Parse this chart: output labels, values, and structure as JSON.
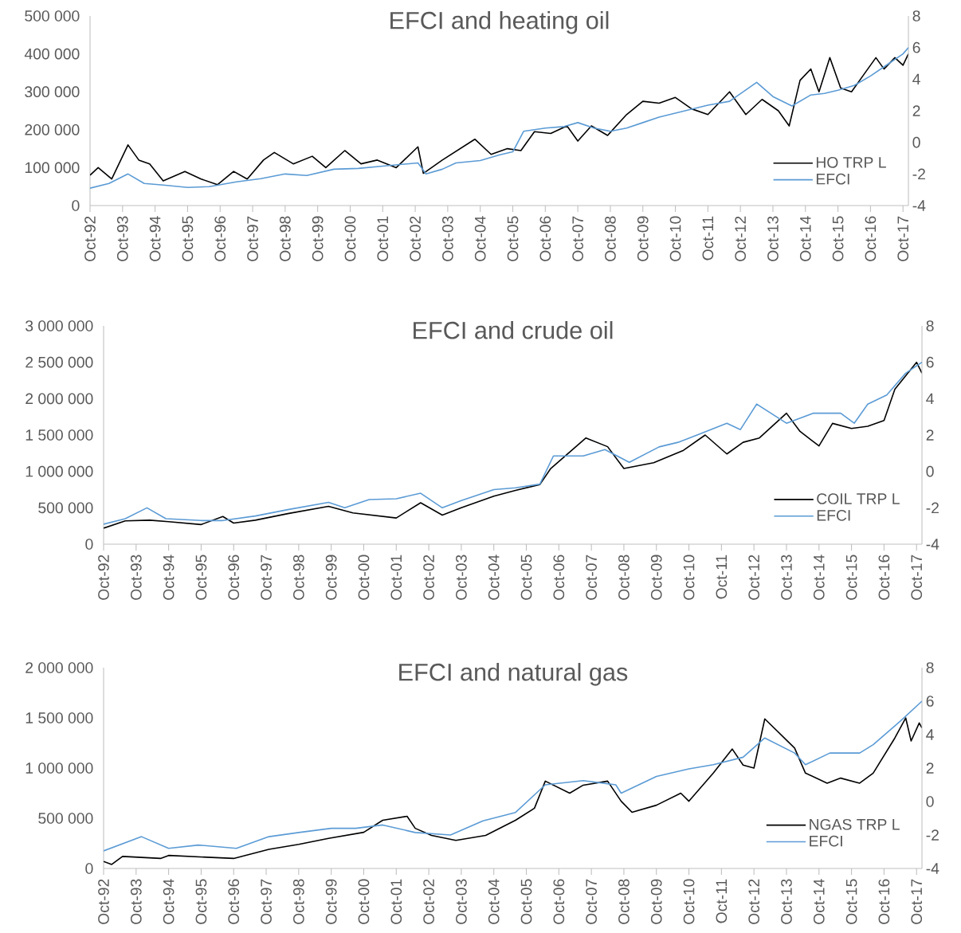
{
  "chart_data": [
    {
      "type": "line",
      "title": "EFCI and heating oil",
      "legend": "bottom right",
      "xlim": [
        "1992-10",
        "2017-12"
      ],
      "xticks": [
        {
          "value": "1992-10",
          "label": "Oct-92"
        },
        {
          "value": "1993-10",
          "label": "Oct-93"
        },
        {
          "value": "1994-10",
          "label": "Oct-94"
        },
        {
          "value": "1995-10",
          "label": "Oct-95"
        },
        {
          "value": "1996-10",
          "label": "Oct-96"
        },
        {
          "value": "1997-10",
          "label": "Oct-97"
        },
        {
          "value": "1998-10",
          "label": "Oct-98"
        },
        {
          "value": "1999-10",
          "label": "Oct-99"
        },
        {
          "value": "2000-10",
          "label": "Oct-00"
        },
        {
          "value": "2001-10",
          "label": "Oct-01"
        },
        {
          "value": "2002-10",
          "label": "Oct-02"
        },
        {
          "value": "2003-10",
          "label": "Oct-03"
        },
        {
          "value": "2004-10",
          "label": "Oct-04"
        },
        {
          "value": "2005-10",
          "label": "Oct-05"
        },
        {
          "value": "2006-10",
          "label": "Oct-06"
        },
        {
          "value": "2007-10",
          "label": "Oct-07"
        },
        {
          "value": "2008-10",
          "label": "Oct-08"
        },
        {
          "value": "2009-10",
          "label": "Oct-09"
        },
        {
          "value": "2010-10",
          "label": "Oct-10"
        },
        {
          "value": "2011-10",
          "label": "Oct-11"
        },
        {
          "value": "2012-10",
          "label": "Oct-12"
        },
        {
          "value": "2013-10",
          "label": "Oct-13"
        },
        {
          "value": "2014-10",
          "label": "Oct-14"
        },
        {
          "value": "2015-10",
          "label": "Oct-15"
        },
        {
          "value": "2016-10",
          "label": "Oct-16"
        },
        {
          "value": "2017-10",
          "label": "Oct-17"
        }
      ],
      "ylim": [
        0,
        500000
      ],
      "yticks": [
        0,
        {
          "value": 100000,
          "label": "100 000"
        },
        {
          "value": 200000,
          "label": "200 000"
        },
        {
          "value": 300000,
          "label": "300 000"
        },
        {
          "value": 400000,
          "label": "400 000"
        },
        {
          "value": 500000,
          "label": "500 000"
        }
      ],
      "y2lim": [
        -4,
        8
      ],
      "y2ticks": [
        -4,
        -2,
        0,
        2,
        4,
        6,
        8
      ],
      "series": [
        {
          "name": "HO TRP L",
          "color": "#000000",
          "x": [
            "1992-10",
            "1993-01",
            "1993-06",
            "1993-12",
            "1994-04",
            "1994-08",
            "1995-01",
            "1995-09",
            "1996-03",
            "1996-09",
            "1997-03",
            "1997-08",
            "1998-02",
            "1998-06",
            "1999-01",
            "1999-08",
            "2000-01",
            "2000-08",
            "2001-02",
            "2001-08",
            "2002-03",
            "2002-11",
            "2003-01",
            "2003-08",
            "2004-08",
            "2005-02",
            "2005-08",
            "2006-01",
            "2006-06",
            "2006-12",
            "2007-06",
            "2007-10",
            "2008-03",
            "2008-09",
            "2009-04",
            "2009-10",
            "2010-04",
            "2010-10",
            "2011-04",
            "2011-10",
            "2012-06",
            "2012-12",
            "2013-06",
            "2013-12",
            "2014-04",
            "2014-08",
            "2014-12",
            "2015-03",
            "2015-07",
            "2015-11",
            "2016-03",
            "2016-08",
            "2016-12",
            "2017-03",
            "2017-07",
            "2017-10",
            "2017-12"
          ],
          "values": [
            80000,
            100000,
            70000,
            160000,
            120000,
            110000,
            65000,
            90000,
            70000,
            55000,
            90000,
            70000,
            120000,
            140000,
            110000,
            130000,
            100000,
            145000,
            110000,
            120000,
            100000,
            155000,
            85000,
            120000,
            175000,
            135000,
            150000,
            145000,
            195000,
            190000,
            210000,
            170000,
            210000,
            185000,
            240000,
            275000,
            270000,
            285000,
            255000,
            240000,
            300000,
            240000,
            280000,
            250000,
            210000,
            330000,
            360000,
            300000,
            390000,
            310000,
            300000,
            350000,
            390000,
            360000,
            390000,
            370000,
            400000
          ]
        },
        {
          "name": "EFCI",
          "color": "#5b9bd5",
          "axis": "y2",
          "x": [
            "1992-10",
            "1993-05",
            "1993-12",
            "1994-06",
            "1995-01",
            "1995-10",
            "1996-06",
            "1997-04",
            "1998-01",
            "1998-10",
            "1999-06",
            "2000-04",
            "2001-01",
            "2001-10",
            "2002-11",
            "2003-02",
            "2003-08",
            "2004-01",
            "2004-10",
            "2005-05",
            "2005-10",
            "2006-02",
            "2006-10",
            "2007-05",
            "2007-10",
            "2008-04",
            "2008-10",
            "2009-04",
            "2009-10",
            "2010-04",
            "2010-10",
            "2011-04",
            "2011-10",
            "2012-06",
            "2013-04",
            "2013-10",
            "2014-05",
            "2014-12",
            "2015-05",
            "2015-10",
            "2016-04",
            "2016-10",
            "2017-04",
            "2017-10",
            "2017-12"
          ],
          "values": [
            -2.9,
            -2.6,
            -2.0,
            -2.6,
            -2.7,
            -2.85,
            -2.8,
            -2.5,
            -2.3,
            -2.0,
            -2.1,
            -1.7,
            -1.65,
            -1.5,
            -1.3,
            -2.0,
            -1.7,
            -1.3,
            -1.15,
            -0.8,
            -0.6,
            0.7,
            0.9,
            1.0,
            1.25,
            0.9,
            0.7,
            0.9,
            1.25,
            1.6,
            1.85,
            2.1,
            2.35,
            2.6,
            3.8,
            2.9,
            2.3,
            3.0,
            3.1,
            3.3,
            3.6,
            4.2,
            4.9,
            5.6,
            6.0
          ]
        }
      ]
    },
    {
      "type": "line",
      "title": "EFCI and crude oil",
      "legend": "bottom right",
      "xlim": [
        "1992-10",
        "2017-12"
      ],
      "xticks": [
        {
          "value": "1992-10",
          "label": "Oct-92"
        },
        {
          "value": "1993-10",
          "label": "Oct-93"
        },
        {
          "value": "1994-10",
          "label": "Oct-94"
        },
        {
          "value": "1995-10",
          "label": "Oct-95"
        },
        {
          "value": "1996-10",
          "label": "Oct-96"
        },
        {
          "value": "1997-10",
          "label": "Oct-97"
        },
        {
          "value": "1998-10",
          "label": "Oct-98"
        },
        {
          "value": "1999-10",
          "label": "Oct-99"
        },
        {
          "value": "2000-10",
          "label": "Oct-00"
        },
        {
          "value": "2001-10",
          "label": "Oct-01"
        },
        {
          "value": "2002-10",
          "label": "Oct-02"
        },
        {
          "value": "2003-10",
          "label": "Oct-03"
        },
        {
          "value": "2004-10",
          "label": "Oct-04"
        },
        {
          "value": "2005-10",
          "label": "Oct-05"
        },
        {
          "value": "2006-10",
          "label": "Oct-06"
        },
        {
          "value": "2007-10",
          "label": "Oct-07"
        },
        {
          "value": "2008-10",
          "label": "Oct-08"
        },
        {
          "value": "2009-10",
          "label": "Oct-09"
        },
        {
          "value": "2010-10",
          "label": "Oct-10"
        },
        {
          "value": "2011-10",
          "label": "Oct-11"
        },
        {
          "value": "2012-10",
          "label": "Oct-12"
        },
        {
          "value": "2013-10",
          "label": "Oct-13"
        },
        {
          "value": "2014-10",
          "label": "Oct-14"
        },
        {
          "value": "2015-10",
          "label": "Oct-15"
        },
        {
          "value": "2016-10",
          "label": "Oct-16"
        },
        {
          "value": "2017-10",
          "label": "Oct-17"
        }
      ],
      "ylim": [
        0,
        3000000
      ],
      "yticks": [
        0,
        {
          "value": 500000,
          "label": "500 000"
        },
        {
          "value": 1000000,
          "label": "1 000 000"
        },
        {
          "value": 1500000,
          "label": "1 500 000"
        },
        {
          "value": 2000000,
          "label": "2 000 000"
        },
        {
          "value": 2500000,
          "label": "2 500 000"
        },
        {
          "value": 3000000,
          "label": "3 000 000"
        }
      ],
      "y2lim": [
        -4,
        8
      ],
      "y2ticks": [
        -4,
        -2,
        0,
        2,
        4,
        6,
        8
      ],
      "series": [
        {
          "name": "COIL TRP L",
          "color": "#000000",
          "x": [
            "1992-10",
            "1993-06",
            "1994-03",
            "1994-10",
            "1995-10",
            "1996-06",
            "1996-10",
            "1997-06",
            "1998-06",
            "1999-09",
            "2000-06",
            "2001-10",
            "2002-07",
            "2003-03",
            "2003-10",
            "2004-10",
            "2005-06",
            "2006-03",
            "2006-07",
            "2007-08",
            "2008-04",
            "2008-10",
            "2009-09",
            "2010-08",
            "2011-04",
            "2011-12",
            "2012-06",
            "2012-12",
            "2013-10",
            "2014-03",
            "2014-10",
            "2015-03",
            "2015-10",
            "2016-04",
            "2016-10",
            "2017-02",
            "2017-10",
            "2017-12"
          ],
          "values": [
            220000,
            320000,
            330000,
            310000,
            270000,
            380000,
            290000,
            330000,
            420000,
            520000,
            430000,
            360000,
            570000,
            400000,
            500000,
            660000,
            740000,
            820000,
            1040000,
            1460000,
            1340000,
            1040000,
            1120000,
            1290000,
            1500000,
            1240000,
            1400000,
            1460000,
            1800000,
            1550000,
            1350000,
            1660000,
            1590000,
            1620000,
            1700000,
            2130000,
            2500000,
            2350000
          ]
        },
        {
          "name": "EFCI",
          "color": "#5b9bd5",
          "axis": "y2",
          "x": [
            "1992-10",
            "1993-06",
            "1994-02",
            "1994-09",
            "1995-10",
            "1996-06",
            "1997-06",
            "1998-06",
            "1999-09",
            "2000-03",
            "2000-12",
            "2001-10",
            "2002-07",
            "2003-03",
            "2003-10",
            "2004-10",
            "2005-06",
            "2006-03",
            "2006-08",
            "2007-07",
            "2008-03",
            "2008-12",
            "2009-11",
            "2010-06",
            "2011-01",
            "2011-12",
            "2012-05",
            "2012-11",
            "2013-10",
            "2014-08",
            "2015-06",
            "2015-11",
            "2016-04",
            "2016-11",
            "2017-06",
            "2017-12"
          ],
          "values": [
            -2.9,
            -2.6,
            -2.0,
            -2.6,
            -2.7,
            -2.7,
            -2.45,
            -2.1,
            -1.7,
            -2.0,
            -1.55,
            -1.5,
            -1.2,
            -2.0,
            -1.6,
            -1.0,
            -0.9,
            -0.7,
            0.85,
            0.85,
            1.2,
            0.5,
            1.35,
            1.6,
            2.0,
            2.65,
            2.3,
            3.7,
            2.65,
            3.2,
            3.2,
            2.65,
            3.7,
            4.2,
            5.4,
            6.0
          ]
        }
      ]
    },
    {
      "type": "line",
      "title": "EFCI and natural gas",
      "legend": "bottom right",
      "xlim": [
        "1992-10",
        "2017-12"
      ],
      "xticks": [
        {
          "value": "1992-10",
          "label": "Oct-92"
        },
        {
          "value": "1993-10",
          "label": "Oct-93"
        },
        {
          "value": "1994-10",
          "label": "Oct-94"
        },
        {
          "value": "1995-10",
          "label": "Oct-95"
        },
        {
          "value": "1996-10",
          "label": "Oct-96"
        },
        {
          "value": "1997-10",
          "label": "Oct-97"
        },
        {
          "value": "1998-10",
          "label": "Oct-98"
        },
        {
          "value": "1999-10",
          "label": "Oct-99"
        },
        {
          "value": "2000-10",
          "label": "Oct-00"
        },
        {
          "value": "2001-10",
          "label": "Oct-01"
        },
        {
          "value": "2002-10",
          "label": "Oct-02"
        },
        {
          "value": "2003-10",
          "label": "Oct-03"
        },
        {
          "value": "2004-10",
          "label": "Oct-04"
        },
        {
          "value": "2005-10",
          "label": "Oct-05"
        },
        {
          "value": "2006-10",
          "label": "Oct-06"
        },
        {
          "value": "2007-10",
          "label": "Oct-07"
        },
        {
          "value": "2008-10",
          "label": "Oct-08"
        },
        {
          "value": "2009-10",
          "label": "Oct-09"
        },
        {
          "value": "2010-10",
          "label": "Oct-10"
        },
        {
          "value": "2011-10",
          "label": "Oct-11"
        },
        {
          "value": "2012-10",
          "label": "Oct-12"
        },
        {
          "value": "2013-10",
          "label": "Oct-13"
        },
        {
          "value": "2014-10",
          "label": "Oct-14"
        },
        {
          "value": "2015-10",
          "label": "Oct-15"
        },
        {
          "value": "2016-10",
          "label": "Oct-16"
        },
        {
          "value": "2017-10",
          "label": "Oct-17"
        }
      ],
      "ylim": [
        0,
        2000000
      ],
      "yticks": [
        0,
        {
          "value": 500000,
          "label": "500 000"
        },
        {
          "value": 1000000,
          "label": "1 000 000"
        },
        {
          "value": 1500000,
          "label": "1 500 000"
        },
        {
          "value": 2000000,
          "label": "2 000 000"
        }
      ],
      "y2lim": [
        -4,
        8
      ],
      "y2ticks": [
        -4,
        -2,
        0,
        2,
        4,
        6,
        8
      ],
      "series": [
        {
          "name": "NGAS TRP L",
          "color": "#000000",
          "x": [
            "1992-10",
            "1993-01",
            "1993-05",
            "1994-07",
            "1994-10",
            "1996-10",
            "1997-11",
            "1998-10",
            "1999-09",
            "2000-10",
            "2001-05",
            "2002-02",
            "2002-05",
            "2002-11",
            "2003-08",
            "2004-07",
            "2005-06",
            "2006-01",
            "2006-05",
            "2007-02",
            "2007-07",
            "2008-04",
            "2008-09",
            "2009-01",
            "2009-10",
            "2010-07",
            "2010-10",
            "2011-07",
            "2012-02",
            "2012-06",
            "2012-10",
            "2013-02",
            "2014-01",
            "2014-05",
            "2015-01",
            "2015-06",
            "2016-01",
            "2016-06",
            "2017-02",
            "2017-06",
            "2017-08",
            "2017-11",
            "2017-12"
          ],
          "values": [
            70000,
            40000,
            120000,
            100000,
            130000,
            100000,
            190000,
            240000,
            300000,
            360000,
            480000,
            520000,
            400000,
            330000,
            280000,
            330000,
            480000,
            600000,
            870000,
            750000,
            830000,
            870000,
            670000,
            560000,
            630000,
            750000,
            670000,
            950000,
            1190000,
            1030000,
            1000000,
            1490000,
            1200000,
            950000,
            850000,
            900000,
            850000,
            950000,
            1300000,
            1500000,
            1270000,
            1450000,
            1400000
          ]
        },
        {
          "name": "EFCI",
          "color": "#5b9bd5",
          "axis": "y2",
          "x": [
            "1992-10",
            "1993-12",
            "1994-10",
            "1995-09",
            "1996-11",
            "1997-11",
            "1998-10",
            "1999-10",
            "2000-07",
            "2001-05",
            "2002-05",
            "2003-06",
            "2004-06",
            "2005-06",
            "2006-05",
            "2007-07",
            "2008-07",
            "2008-09",
            "2009-10",
            "2010-10",
            "2011-07",
            "2012-06",
            "2013-02",
            "2014-01",
            "2014-05",
            "2015-02",
            "2016-01",
            "2016-06",
            "2017-04",
            "2017-12"
          ],
          "values": [
            -2.95,
            -2.1,
            -2.8,
            -2.6,
            -2.8,
            -2.1,
            -1.85,
            -1.6,
            -1.6,
            -1.4,
            -1.85,
            -2.0,
            -1.15,
            -0.65,
            1.0,
            1.25,
            1.0,
            0.5,
            1.5,
            1.95,
            2.2,
            2.65,
            3.8,
            2.9,
            2.2,
            2.9,
            2.9,
            3.4,
            4.8,
            6.0
          ]
        }
      ]
    }
  ]
}
